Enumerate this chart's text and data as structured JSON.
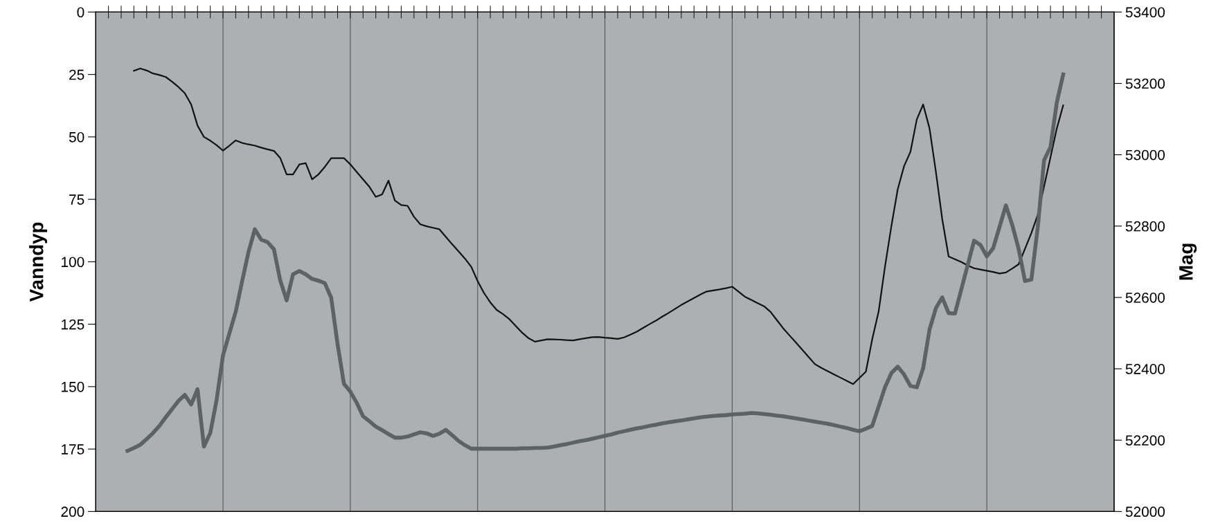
{
  "chart_data": {
    "type": "line",
    "ylabel": "Vanndyp",
    "y2label": "Mag",
    "categories": [
      null,
      null,
      null,
      null,
      null,
      null,
      null,
      null,
      null,
      null,
      null,
      null,
      null,
      null,
      null,
      null,
      null,
      null,
      null,
      null,
      null,
      null,
      null,
      null,
      null,
      null,
      null,
      null,
      null,
      null,
      null,
      null,
      null,
      null,
      null,
      null,
      null,
      null,
      null,
      null,
      null,
      null,
      null,
      null,
      null,
      null,
      null,
      null,
      null,
      null,
      null,
      null,
      null,
      null,
      null,
      null,
      null,
      null,
      null,
      null,
      null,
      null,
      null,
      null,
      null,
      null,
      null,
      null,
      null,
      null,
      null,
      null,
      null,
      null,
      null,
      null,
      null,
      null,
      null,
      null,
      null,
      null,
      null,
      null,
      null,
      null,
      null,
      null,
      null,
      null,
      null,
      null,
      null,
      null,
      null,
      null,
      null,
      null,
      null,
      null,
      null,
      null,
      null,
      null,
      null,
      null,
      null,
      null,
      null,
      null,
      null,
      null,
      null,
      null,
      null,
      null,
      null,
      null,
      null,
      null,
      null,
      null,
      null,
      null,
      null,
      null,
      null,
      null,
      null,
      null,
      null,
      null,
      null,
      null,
      null,
      null,
      null,
      null,
      null,
      null,
      null,
      null,
      null,
      null,
      null,
      null,
      null,
      null,
      null,
      null,
      null,
      null,
      null,
      null,
      null,
      null,
      null,
      null,
      null,
      null,
      null
    ],
    "ylim": [
      200,
      0
    ],
    "yticks": [
      0,
      25,
      50,
      75,
      100,
      125,
      150,
      175,
      200
    ],
    "y2lim": [
      52000,
      53400
    ],
    "y2ticks": [
      52000,
      52200,
      52400,
      52600,
      52800,
      53000,
      53200,
      53400
    ],
    "grid": "x",
    "tick_labels": "y",
    "legend": false,
    "marker": "none",
    "line_style": "solid",
    "series": [
      {
        "color": "#5d6264",
        "axis": "y2",
        "values": [
          null,
          null,
          null,
          null,
          null,
          52170,
          52178,
          52187,
          52203,
          52220,
          52240,
          52264,
          52287,
          52310,
          52327,
          52300,
          52343,
          52182,
          52220,
          52313,
          52438,
          52499,
          52560,
          52645,
          52727,
          52791,
          52762,
          52755,
          52735,
          52647,
          52592,
          52665,
          52674,
          52665,
          52652,
          52647,
          52640,
          52599,
          52469,
          52358,
          52336,
          52305,
          52267,
          52253,
          52238,
          52228,
          52217,
          52207,
          52207,
          52210,
          52216,
          52222,
          52219,
          52212,
          52218,
          52229,
          52214,
          52198,
          52186,
          52176,
          52176,
          52176,
          52176,
          52176,
          52176,
          52176,
          52176,
          52177,
          52177,
          52178,
          52178,
          52179,
          52182,
          52186,
          52189,
          52193,
          52197,
          52200,
          52204,
          52208,
          52212,
          52216,
          52221,
          52225,
          52229,
          52233,
          52236,
          52240,
          52243,
          52247,
          52250,
          52253,
          52255,
          52258,
          52261,
          52264,
          52266,
          52268,
          52269,
          52270,
          52272,
          52273,
          52274,
          52276,
          52275,
          52273,
          52271,
          52269,
          52267,
          52264,
          52261,
          52258,
          52255,
          52252,
          52249,
          52246,
          52242,
          52238,
          52234,
          52229,
          52225,
          52232,
          52240,
          52294,
          52348,
          52388,
          52406,
          52384,
          52352,
          52348,
          52402,
          52510,
          52570,
          52600,
          52556,
          52555,
          52623,
          52691,
          52759,
          52747,
          52715,
          52738,
          52798,
          52858,
          52803,
          52736,
          52646,
          52650,
          52796,
          52985,
          53021,
          53147,
          53225,
          null,
          null,
          null,
          null,
          null,
          null,
          null,
          null
        ]
      },
      {
        "color": "#111111",
        "axis": "y",
        "values": [
          null,
          null,
          null,
          null,
          null,
          null,
          23.5,
          22.6,
          23.4,
          24.6,
          25.2,
          26,
          27.9,
          30,
          32.5,
          37,
          45.5,
          50,
          51.5,
          53.3,
          55.5,
          53.5,
          51.4,
          52.4,
          53,
          53.5,
          54.3,
          55,
          55.6,
          58.5,
          65,
          65,
          61,
          60.5,
          67,
          65,
          62,
          58.5,
          58.5,
          58.5,
          61,
          64,
          67,
          70,
          74,
          73,
          67.5,
          75.5,
          77.3,
          77.6,
          82,
          85,
          85.8,
          86.4,
          87,
          90,
          93,
          95.8,
          98.7,
          102,
          107.7,
          112.5,
          116.3,
          119.3,
          121,
          123,
          125.7,
          128.4,
          130.6,
          132,
          131.5,
          131,
          131.1,
          131.2,
          131.4,
          131.5,
          131,
          130.6,
          130.2,
          130.1,
          130.4,
          130.6,
          130.9,
          130.3,
          129.2,
          128,
          126.5,
          125,
          123.6,
          122,
          120.5,
          118.9,
          117.3,
          115.9,
          114.5,
          113.1,
          111.9,
          111.5,
          111.1,
          110.6,
          110,
          112,
          114,
          115.3,
          116.6,
          117.8,
          120,
          123.3,
          126.6,
          129.5,
          132.3,
          135.2,
          138.1,
          141,
          142.5,
          143.8,
          145.1,
          146.4,
          147.7,
          149,
          146.5,
          144,
          131,
          120,
          102,
          85.8,
          71,
          61.7,
          56,
          43,
          37,
          46.6,
          64,
          83,
          97.9,
          99,
          100.1,
          101.5,
          102.6,
          103.1,
          103.6,
          104.1,
          104.7,
          104.3,
          102.7,
          101,
          94.8,
          88.5,
          81.2,
          69.8,
          58.2,
          46.6,
          37.4,
          null,
          null,
          null,
          null,
          null,
          null,
          null,
          null
        ]
      }
    ]
  }
}
